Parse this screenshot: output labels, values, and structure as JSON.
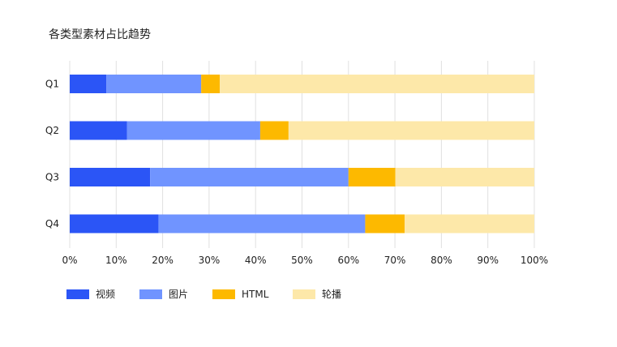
{
  "chart_data": {
    "type": "bar",
    "orientation": "horizontal",
    "stacked": "percent",
    "title": "各类型素材占比趋势",
    "categories": [
      "Q1",
      "Q2",
      "Q3",
      "Q4"
    ],
    "series": [
      {
        "name": "视频",
        "color": "#2b55f6",
        "values": [
          7.9,
          12.3,
          17.3,
          19.1
        ]
      },
      {
        "name": "图片",
        "color": "#7094ff",
        "values": [
          20.4,
          28.7,
          42.7,
          44.5
        ]
      },
      {
        "name": "HTML",
        "color": "#fdb900",
        "values": [
          4.0,
          6.1,
          10.1,
          8.5
        ]
      },
      {
        "name": "轮播",
        "color": "#fde8a9",
        "values": [
          67.7,
          52.9,
          29.9,
          27.9
        ]
      }
    ],
    "xlim": [
      0,
      100
    ],
    "xticks": [
      "0%",
      "10%",
      "20%",
      "30%",
      "40%",
      "50%",
      "60%",
      "70%",
      "80%",
      "90%",
      "100%"
    ],
    "grid": true,
    "legend_position": "bottom-left"
  }
}
